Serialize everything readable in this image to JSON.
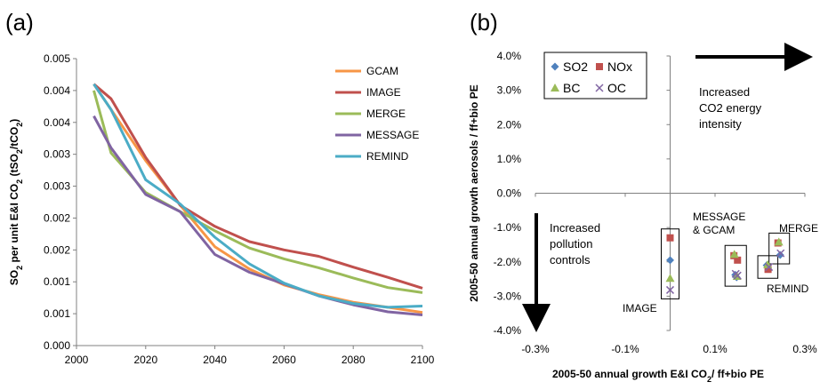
{
  "chart_data": [
    {
      "type": "line",
      "panel_label": "(a)",
      "ylabel_parts": [
        "SO",
        "2",
        " per unit E&I CO",
        "2",
        " (tSO",
        "2",
        "/tCO",
        "2",
        ")"
      ],
      "x_ticks": [
        "2000",
        "2020",
        "2040",
        "2060",
        "2080",
        "2100"
      ],
      "y_ticks": [
        "0.000",
        "0.001",
        "0.001",
        "0.002",
        "0.002",
        "0.003",
        "0.003",
        "0.004",
        "0.004",
        "0.005"
      ],
      "xlim": [
        2000,
        2100
      ],
      "ylim": [
        0,
        0.0045
      ],
      "grid": false,
      "legend_position": "top-right",
      "series": [
        {
          "name": "GCAM",
          "color": "#F79646",
          "x": [
            2005,
            2010,
            2020,
            2030,
            2040,
            2050,
            2060,
            2070,
            2080,
            2090,
            2100
          ],
          "y": [
            0.0041,
            0.0037,
            0.0029,
            0.0022,
            0.00155,
            0.0012,
            0.00095,
            0.0008,
            0.00068,
            0.0006,
            0.00052
          ]
        },
        {
          "name": "IMAGE",
          "color": "#C0504D",
          "x": [
            2005,
            2010,
            2020,
            2030,
            2040,
            2050,
            2060,
            2070,
            2080,
            2090,
            2100
          ],
          "y": [
            0.0041,
            0.00387,
            0.00295,
            0.0022,
            0.00187,
            0.00163,
            0.0015,
            0.0014,
            0.00123,
            0.00107,
            0.0009
          ]
        },
        {
          "name": "MERGE",
          "color": "#9BBB59",
          "x": [
            2005,
            2010,
            2020,
            2030,
            2040,
            2050,
            2060,
            2070,
            2080,
            2090,
            2100
          ],
          "y": [
            0.004,
            0.00302,
            0.0024,
            0.0021,
            0.0018,
            0.00153,
            0.00136,
            0.00122,
            0.00106,
            0.00091,
            0.00083
          ]
        },
        {
          "name": "MESSAGE",
          "color": "#8064A2",
          "x": [
            2005,
            2010,
            2020,
            2030,
            2040,
            2050,
            2060,
            2070,
            2080,
            2090,
            2100
          ],
          "y": [
            0.0036,
            0.0031,
            0.00237,
            0.0021,
            0.00143,
            0.00115,
            0.00097,
            0.00078,
            0.00064,
            0.00053,
            0.00048
          ]
        },
        {
          "name": "REMIND",
          "color": "#4BACC6",
          "x": [
            2005,
            2010,
            2020,
            2030,
            2040,
            2050,
            2060,
            2070,
            2080,
            2090,
            2100
          ],
          "y": [
            0.0041,
            0.0037,
            0.0026,
            0.00222,
            0.0017,
            0.00128,
            0.00098,
            0.00078,
            0.00066,
            0.0006,
            0.00062
          ]
        }
      ]
    },
    {
      "type": "scatter",
      "panel_label": "(b)",
      "xlabel_parts": [
        "2005-50 annual growth E&I CO",
        "2",
        "/ ff+bio PE"
      ],
      "ylabel": "2005-50 annual growth aerosols / ff+bio PE",
      "x_ticks": [
        "-0.3%",
        "-0.1%",
        "0.1%",
        "0.3%"
      ],
      "x_tick_values": [
        -0.3,
        -0.1,
        0.1,
        0.3
      ],
      "y_ticks": [
        "4.0%",
        "3.0%",
        "2.0%",
        "1.0%",
        "0.0%",
        "-1.0%",
        "-2.0%",
        "-3.0%",
        "-4.0%"
      ],
      "y_tick_values": [
        4,
        3,
        2,
        1,
        0,
        -1,
        -2,
        -3,
        -4
      ],
      "xlim": [
        -0.3,
        0.3
      ],
      "ylim": [
        -4,
        4
      ],
      "grid": false,
      "legend_position": "top-left",
      "series": [
        {
          "name": "SO2",
          "marker": "diamond",
          "color": "#4F81BD",
          "x": [
            0.0,
            0.145,
            0.148,
            0.215,
            0.245
          ],
          "y": [
            -1.95,
            -2.38,
            -2.45,
            -2.1,
            -1.8
          ]
        },
        {
          "name": "NOx",
          "marker": "square",
          "color": "#C0504D",
          "x": [
            0.0,
            0.142,
            0.15,
            0.218,
            0.24
          ],
          "y": [
            -1.3,
            -1.82,
            -1.95,
            -2.22,
            -1.45
          ]
        },
        {
          "name": "BC",
          "marker": "triangle",
          "color": "#9BBB59",
          "x": [
            0.0,
            0.143,
            0.149,
            0.217,
            0.242
          ],
          "y": [
            -2.48,
            -1.78,
            -2.42,
            -2.08,
            -1.42
          ]
        },
        {
          "name": "OC",
          "marker": "x",
          "color": "#8064A2",
          "x": [
            0.0,
            0.146,
            0.15,
            0.22,
            0.246
          ],
          "y": [
            -2.82,
            -2.35,
            -2.4,
            -2.15,
            -1.75
          ]
        }
      ],
      "annotations": {
        "increased_co2": [
          "Increased",
          "CO2 energy",
          "intensity"
        ],
        "increased_pollution": [
          "Increased",
          "pollution",
          "controls"
        ],
        "label_image": "IMAGE",
        "label_message_gcam": [
          "MESSAGE",
          "& GCAM"
        ],
        "label_merge": "MERGE",
        "label_remind": "REMIND"
      }
    }
  ]
}
